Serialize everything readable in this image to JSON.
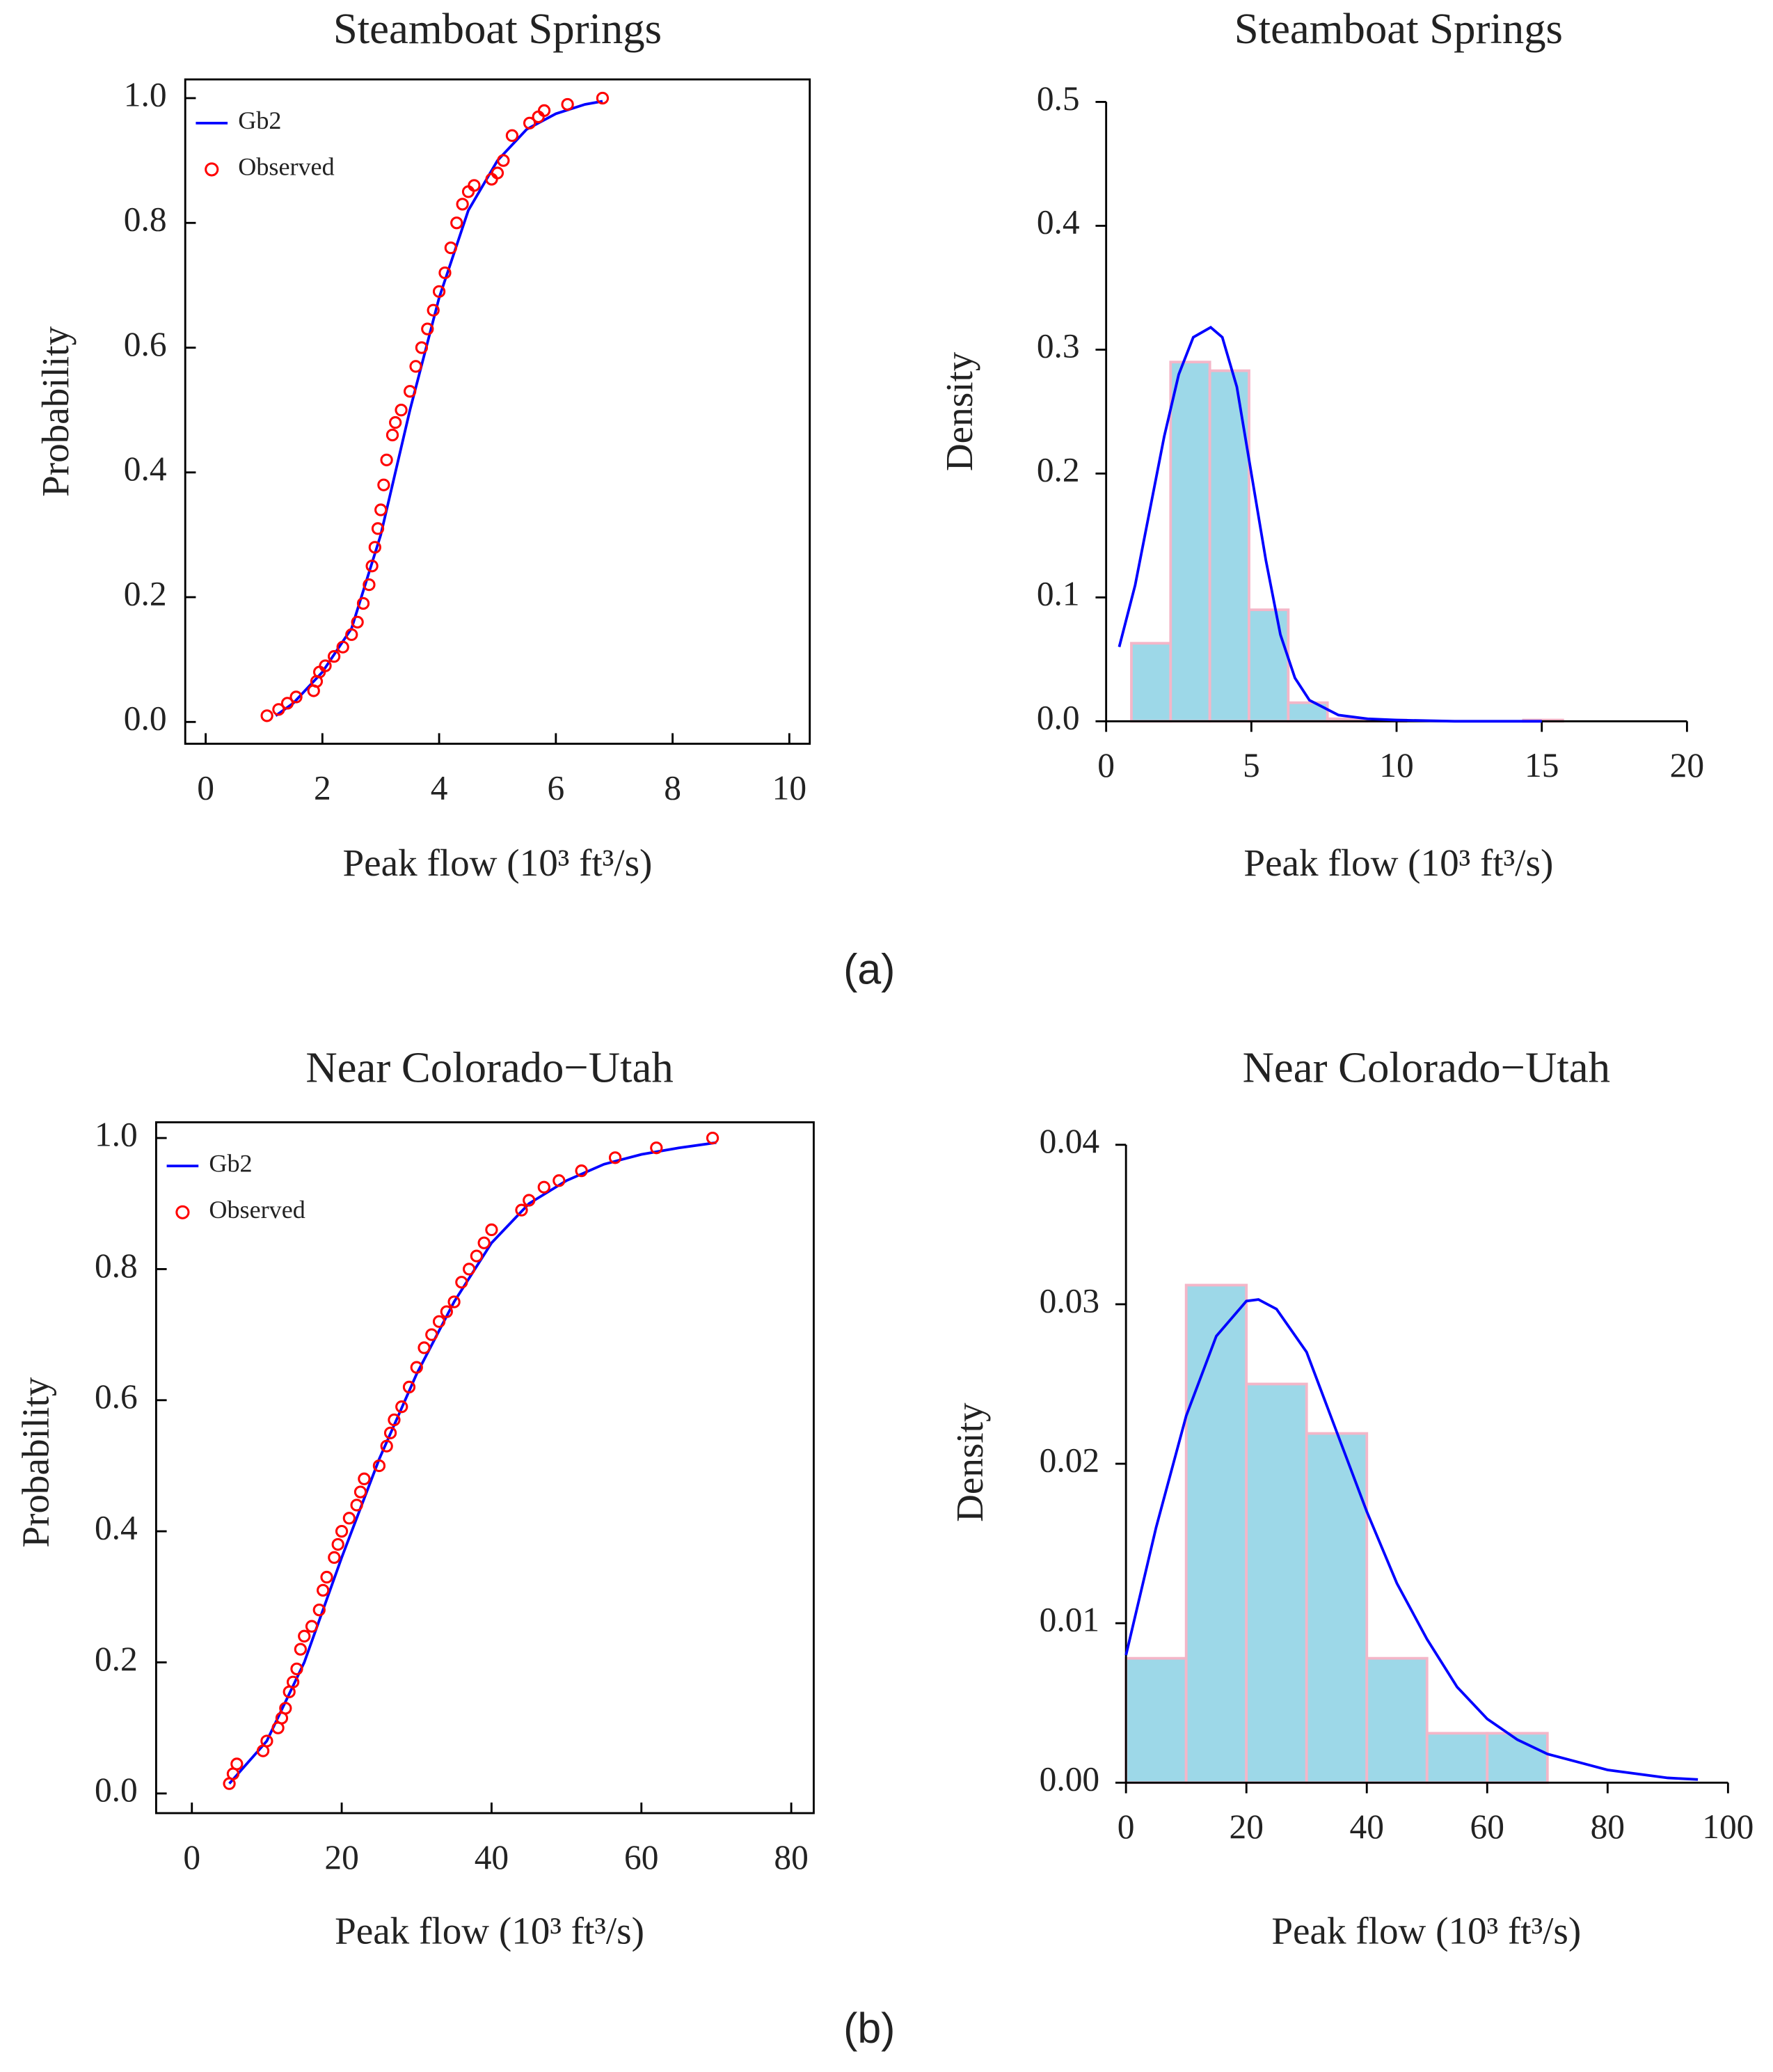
{
  "chart_data": [
    {
      "type": "scatter",
      "title": "Steamboat Springs",
      "xlabel": "Peak flow (10³ ft³/s)",
      "ylabel": "Probability",
      "xlim": [
        -0.35,
        10.35
      ],
      "ylim": [
        -0.035,
        1.03
      ],
      "xticks": [
        0,
        2,
        4,
        6,
        8,
        10
      ],
      "yticks": [
        {
          "value": 0,
          "label": "0.0"
        },
        {
          "value": 0.2,
          "label": "0.2"
        },
        {
          "value": 0.4,
          "label": "0.4"
        },
        {
          "value": 0.6,
          "label": "0.6"
        },
        {
          "value": 0.8,
          "label": "0.8"
        },
        {
          "value": 1,
          "label": "1.0"
        }
      ],
      "legend": "upper left",
      "series": [
        {
          "name": "Gb2",
          "color": "#0000ff",
          "style": "line",
          "x": [
            1.2,
            1.5,
            2,
            2.5,
            3,
            3.5,
            4,
            4.5,
            5,
            5.5,
            6,
            6.5,
            6.8
          ],
          "values": [
            0.01,
            0.03,
            0.08,
            0.15,
            0.3,
            0.5,
            0.68,
            0.82,
            0.9,
            0.95,
            0.975,
            0.99,
            0.995
          ]
        },
        {
          "name": "Observed",
          "color": "#ff0000",
          "style": "markers",
          "x": [
            1.05,
            1.25,
            1.4,
            1.55,
            1.85,
            1.9,
            1.95,
            2.05,
            2.2,
            2.35,
            2.5,
            2.6,
            2.7,
            2.8,
            2.85,
            2.9,
            2.95,
            3.0,
            3.05,
            3.1,
            3.2,
            3.25,
            3.35,
            3.5,
            3.6,
            3.7,
            3.8,
            3.9,
            4.0,
            4.1,
            4.2,
            4.3,
            4.4,
            4.5,
            4.6,
            4.9,
            5.0,
            5.1,
            5.25,
            5.55,
            5.7,
            5.8,
            6.2,
            6.8
          ],
          "values": [
            0.01,
            0.02,
            0.03,
            0.04,
            0.05,
            0.065,
            0.08,
            0.09,
            0.105,
            0.12,
            0.14,
            0.16,
            0.19,
            0.22,
            0.25,
            0.28,
            0.31,
            0.34,
            0.38,
            0.42,
            0.46,
            0.48,
            0.5,
            0.53,
            0.57,
            0.6,
            0.63,
            0.66,
            0.69,
            0.72,
            0.76,
            0.8,
            0.83,
            0.85,
            0.86,
            0.87,
            0.88,
            0.9,
            0.94,
            0.96,
            0.97,
            0.98,
            0.99,
            1.0
          ]
        }
      ]
    },
    {
      "type": "histogram",
      "title": "Steamboat Springs",
      "xlabel": "Peak flow (10³ ft³/s)",
      "ylabel": "Density",
      "xlim": [
        0,
        20
      ],
      "ylim": [
        0,
        0.5
      ],
      "xticks": [
        0,
        5,
        10,
        15,
        20
      ],
      "yticks": [
        {
          "value": 0,
          "label": "0.0"
        },
        {
          "value": 0.1,
          "label": "0.1"
        },
        {
          "value": 0.2,
          "label": "0.2"
        },
        {
          "value": 0.3,
          "label": "0.3"
        },
        {
          "value": 0.4,
          "label": "0.4"
        },
        {
          "value": 0.5,
          "label": "0.5"
        }
      ],
      "bins": [
        0.87,
        2.22,
        3.57,
        4.92,
        6.27,
        7.62,
        8.97,
        10.32,
        11.67,
        13.02,
        14.37,
        15.72
      ],
      "counts": [
        0.063,
        0.29,
        0.283,
        0.09,
        0.015,
        0.002,
        0.001,
        0,
        0,
        0,
        0.001
      ],
      "color": "#9dd8e8",
      "edgecolor": "#f4b6c8",
      "series": [
        {
          "color": "#0000ff",
          "style": "line",
          "x": [
            0.45,
            1,
            1.5,
            2,
            2.5,
            3,
            3.6,
            4,
            4.5,
            5,
            5.5,
            6,
            6.5,
            7,
            8,
            9,
            10,
            12,
            15
          ],
          "values": [
            0.06,
            0.11,
            0.17,
            0.23,
            0.28,
            0.31,
            0.318,
            0.31,
            0.27,
            0.2,
            0.13,
            0.07,
            0.035,
            0.017,
            0.005,
            0.002,
            0.001,
            0,
            0
          ]
        }
      ]
    },
    {
      "type": "scatter",
      "title": "Near Colorado−Utah",
      "xlabel": "Peak flow (10³ ft³/s)",
      "ylabel": "Probability",
      "xlim": [
        -4.77,
        83.0
      ],
      "ylim": [
        -0.03,
        1.024
      ],
      "xticks": [
        0,
        20,
        40,
        60,
        80
      ],
      "yticks": [
        {
          "value": 0,
          "label": "0.0"
        },
        {
          "value": 0.2,
          "label": "0.2"
        },
        {
          "value": 0.4,
          "label": "0.4"
        },
        {
          "value": 0.6,
          "label": "0.6"
        },
        {
          "value": 0.8,
          "label": "0.8"
        },
        {
          "value": 1,
          "label": "1.0"
        }
      ],
      "legend": "upper left",
      "series": [
        {
          "name": "Gb2",
          "color": "#0000ff",
          "style": "line",
          "x": [
            5,
            10,
            15,
            20,
            25,
            30,
            35,
            40,
            45,
            50,
            55,
            60,
            65,
            70
          ],
          "values": [
            0.015,
            0.08,
            0.2,
            0.36,
            0.51,
            0.64,
            0.75,
            0.84,
            0.9,
            0.935,
            0.96,
            0.975,
            0.985,
            0.993
          ]
        },
        {
          "name": "Observed",
          "color": "#ff0000",
          "style": "markers",
          "x": [
            5,
            5.5,
            6,
            9.5,
            10,
            11.5,
            12,
            12.5,
            13,
            13.5,
            14,
            14.5,
            15,
            16,
            17,
            17.5,
            18,
            19,
            19.5,
            20,
            21,
            22,
            22.5,
            23,
            25,
            26,
            26.5,
            27,
            28,
            29,
            30,
            31,
            32,
            33,
            34,
            35,
            36,
            37,
            38,
            39,
            40,
            44,
            45,
            47,
            49,
            52,
            56.5,
            62,
            69.5
          ],
          "values": [
            0.015,
            0.03,
            0.045,
            0.065,
            0.08,
            0.1,
            0.115,
            0.13,
            0.155,
            0.17,
            0.19,
            0.22,
            0.24,
            0.255,
            0.28,
            0.31,
            0.33,
            0.36,
            0.38,
            0.4,
            0.42,
            0.44,
            0.46,
            0.48,
            0.5,
            0.53,
            0.55,
            0.57,
            0.59,
            0.62,
            0.65,
            0.68,
            0.7,
            0.72,
            0.735,
            0.75,
            0.78,
            0.8,
            0.82,
            0.84,
            0.86,
            0.89,
            0.905,
            0.925,
            0.935,
            0.95,
            0.97,
            0.985,
            1.0
          ]
        }
      ]
    },
    {
      "type": "histogram",
      "title": "Near Colorado−Utah",
      "xlabel": "Peak flow (10³ ft³/s)",
      "ylabel": "Density",
      "xlim": [
        0,
        100
      ],
      "ylim": [
        0,
        0.04
      ],
      "xticks": [
        0,
        20,
        40,
        60,
        80,
        100
      ],
      "yticks": [
        {
          "value": 0,
          "label": "0.00"
        },
        {
          "value": 0.01,
          "label": "0.01"
        },
        {
          "value": 0.02,
          "label": "0.02"
        },
        {
          "value": 0.03,
          "label": "0.03"
        },
        {
          "value": 0.04,
          "label": "0.04"
        }
      ],
      "bins": [
        0,
        10,
        20,
        30,
        40,
        50,
        60,
        70,
        80,
        90,
        100
      ],
      "counts": [
        0.0078,
        0.0312,
        0.025,
        0.0219,
        0.0078,
        0.0031,
        0.0031,
        0,
        0,
        0
      ],
      "color": "#9dd8e8",
      "edgecolor": "#f4b6c8",
      "series": [
        {
          "color": "#0000ff",
          "style": "line",
          "x": [
            0,
            5,
            10,
            15,
            20,
            22,
            25,
            30,
            35,
            40,
            45,
            50,
            55,
            60,
            65,
            70,
            80,
            90,
            95
          ],
          "values": [
            0.008,
            0.016,
            0.023,
            0.028,
            0.0302,
            0.0303,
            0.0297,
            0.027,
            0.022,
            0.017,
            0.0125,
            0.009,
            0.006,
            0.004,
            0.0027,
            0.0018,
            0.0008,
            0.0003,
            0.0002
          ]
        }
      ]
    }
  ],
  "captions": [
    "(a)",
    "(b)"
  ]
}
